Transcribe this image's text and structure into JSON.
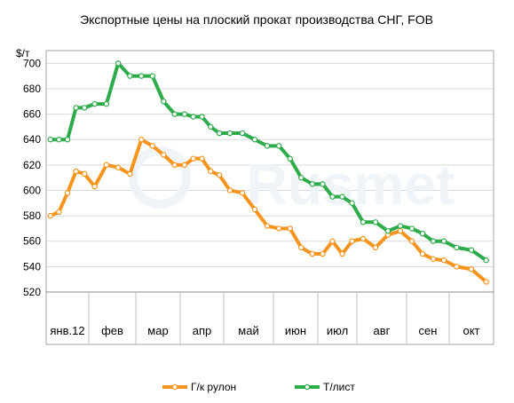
{
  "chart_data": {
    "type": "line",
    "title": "Экспортные цены на плоский прокат производства СНГ, FOB",
    "ylabel": "$/т",
    "xlabel": "",
    "ylim": [
      520,
      710
    ],
    "yticks": [
      520,
      540,
      560,
      580,
      600,
      620,
      640,
      660,
      680,
      700
    ],
    "grid": true,
    "legend_position": "bottom",
    "watermark": "Rusmet",
    "months": [
      "янв.12",
      "фев",
      "мар",
      "апр",
      "май",
      "июн",
      "июл",
      "авг",
      "сен",
      "окт"
    ],
    "points_per_month": [
      5,
      4,
      4,
      5,
      4,
      4,
      4,
      4,
      4,
      3
    ],
    "series": [
      {
        "name": "Г/к рулон",
        "color": "#f7941d",
        "values": [
          580,
          583,
          598,
          615,
          613,
          603,
          620,
          618,
          613,
          640,
          635,
          628,
          620,
          620,
          625,
          625,
          615,
          612,
          600,
          598,
          585,
          572,
          570,
          570,
          555,
          550,
          550,
          560,
          550,
          560,
          562,
          555,
          565,
          568,
          560,
          550,
          546,
          545,
          540,
          538,
          528
        ]
      },
      {
        "name": "Т/лист",
        "color": "#2eab4a",
        "values": [
          640,
          640,
          640,
          665,
          665,
          668,
          668,
          700,
          690,
          690,
          690,
          670,
          660,
          660,
          658,
          658,
          650,
          645,
          645,
          645,
          640,
          635,
          635,
          625,
          610,
          605,
          605,
          595,
          595,
          590,
          575,
          575,
          568,
          572,
          570,
          566,
          560,
          560,
          555,
          553,
          545
        ]
      }
    ]
  }
}
